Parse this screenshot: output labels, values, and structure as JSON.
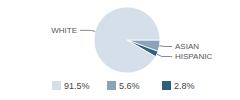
{
  "chart_data": {
    "type": "pie",
    "categories": [
      "WHITE",
      "ASIAN",
      "HISPANIC"
    ],
    "values": [
      91.5,
      5.6,
      2.8
    ],
    "value_labels": [
      "91.5%",
      "5.6%",
      "2.8%"
    ],
    "colors": [
      "#d5dfe9",
      "#8aa3bb",
      "#2f5f7f"
    ],
    "legend": "bottom"
  }
}
